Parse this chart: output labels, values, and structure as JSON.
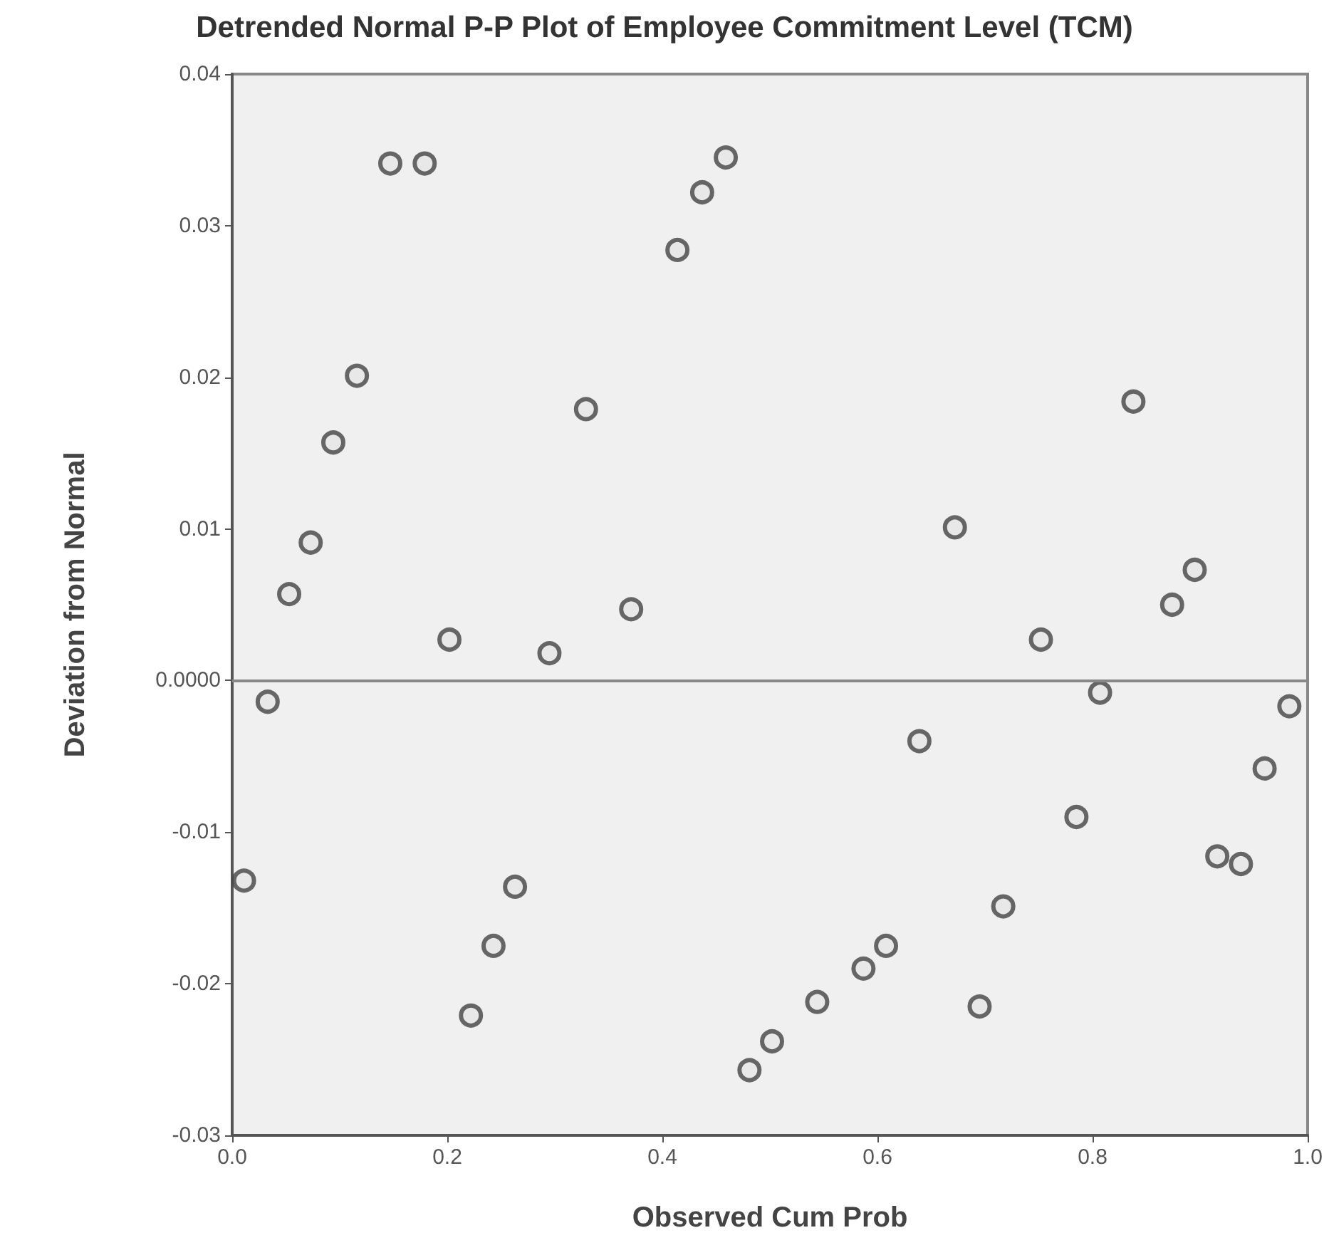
{
  "chart_data": {
    "type": "scatter",
    "title": "Detrended Normal P-P Plot of Employee Commitment Level (TCM)",
    "xlabel": "Observed Cum Prob",
    "ylabel": "Deviation from Normal",
    "x": [
      0.011,
      0.033,
      0.053,
      0.073,
      0.094,
      0.116,
      0.147,
      0.179,
      0.202,
      0.222,
      0.243,
      0.263,
      0.295,
      0.329,
      0.371,
      0.414,
      0.437,
      0.459,
      0.481,
      0.502,
      0.544,
      0.587,
      0.608,
      0.639,
      0.672,
      0.695,
      0.717,
      0.752,
      0.785,
      0.807,
      0.838,
      0.874,
      0.895,
      0.916,
      0.938,
      0.96,
      0.983
    ],
    "values": [
      -0.0132,
      -0.0014,
      0.0057,
      0.0091,
      0.0157,
      0.0201,
      0.0341,
      0.0341,
      0.0027,
      -0.0221,
      -0.0175,
      -0.0136,
      0.0018,
      0.0179,
      0.0047,
      0.0284,
      0.0322,
      0.0345,
      -0.0257,
      -0.0238,
      -0.0212,
      -0.019,
      -0.0175,
      -0.004,
      0.0101,
      -0.0215,
      -0.0149,
      0.0027,
      -0.009,
      -0.0008,
      0.0184,
      0.005,
      0.0073,
      -0.0116,
      -0.0121,
      -0.0058,
      -0.0017
    ],
    "color": "#444444",
    "marker": "circle",
    "grid": false,
    "xlim": [
      0,
      1
    ],
    "xticks": [
      {
        "value": 0,
        "label": "0.0"
      },
      0.2,
      0.4,
      0.6,
      0.8,
      {
        "value": 1,
        "label": "1.0"
      }
    ],
    "ylim": [
      -0.03,
      0.04
    ],
    "yticks": [
      -0.03,
      -0.02,
      -0.01,
      {
        "value": 0,
        "label": "0.0000"
      },
      0.01,
      0.02,
      0.03,
      0.04
    ],
    "ref_lines": [
      {
        "axis": "y",
        "value": 0,
        "label": null,
        "color": "#888888",
        "line_style": "solid"
      }
    ]
  }
}
